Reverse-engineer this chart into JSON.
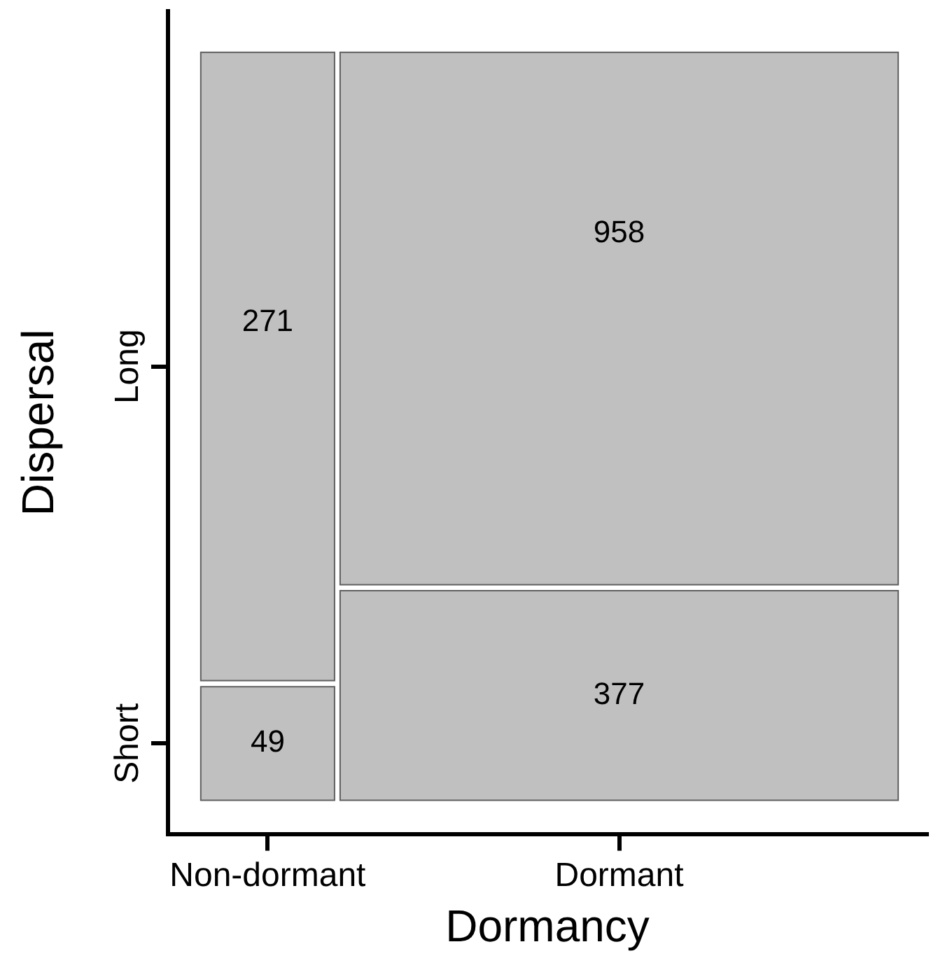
{
  "chart_data": {
    "type": "other",
    "xlabel": "Dormancy",
    "ylabel": "Dispersal",
    "categories": [
      "Non-dormant",
      "Dormant"
    ],
    "y_categories": [
      "Long",
      "Short"
    ],
    "series": [
      {
        "color": "#c0c0c0",
        "values": [
          271,
          958
        ]
      },
      {
        "color": "#c0c0c0",
        "values": [
          49,
          377
        ]
      }
    ],
    "data_labels": true
  }
}
